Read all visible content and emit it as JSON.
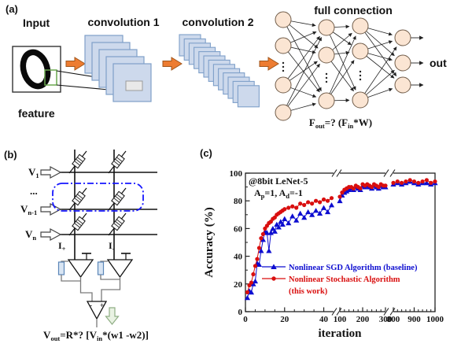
{
  "colors": {
    "conv_fill": "#cdd9ec",
    "conv_stroke": "#7e9fc9",
    "patch_fill": "#e9e9e9",
    "patch_stroke": "#9b9b9b",
    "arrow_orange": "#ed7c31",
    "arrow_orange_stroke": "#a0561c",
    "node_fill": "#fbe5d3",
    "node_stroke": "#705c49",
    "feature_green": "#6aa84f",
    "crossbar_select_blue": "#1616ff",
    "resistor_fill": "#d9e5f3",
    "resistor_stroke": "#5b86b8",
    "green_arrow_fill": "#e9f2e3",
    "green_arrow_stroke": "#8fae84",
    "sgd_blue": "#0d0dd0",
    "stochastic_red": "#d90f0f"
  },
  "panel_a": {
    "label": "(a)",
    "input_label": "Input",
    "conv1_label": "convolution 1",
    "conv2_label": "convolution 2",
    "fc_label": "full connection",
    "feature_label": "feature",
    "out_label": "out",
    "formula": {
      "b1": "F",
      "s1": "out",
      "m": "=? (F",
      "s2": "in",
      "e": "*W)"
    }
  },
  "panel_b": {
    "label": "(b)",
    "rows": {
      "v1": {
        "b": "V",
        "s": "1"
      },
      "dots": "...",
      "vn1": {
        "b": "V",
        "s": "n-1"
      },
      "vn": {
        "b": "V",
        "s": "n"
      }
    },
    "i_plus": {
      "b": "I",
      "s": "+"
    },
    "i_minus": {
      "b": "I",
      "s": "-"
    },
    "opamp_minus": "-",
    "opamp_plus": "+",
    "formula": {
      "b1": "V",
      "s1": "out",
      "m": "=R*? [V",
      "s2": "in",
      "e": "*(w1 -w2)]"
    }
  },
  "panel_c": {
    "label": "(c)"
  },
  "chart_data": {
    "type": "line",
    "xlabel": "iteration",
    "ylabel": "Accuracy (%)",
    "ylim": [
      0,
      100
    ],
    "y_major_ticks": [
      0,
      20,
      40,
      60,
      80,
      100
    ],
    "y_minor_step": 10,
    "grid": false,
    "legend_position": "inside lower right",
    "annotation_line1": "@8bit LeNet-5",
    "annotation_line2_parts": {
      "b1": "A",
      "s1": "p",
      "m": "=1, A",
      "s2": "d",
      "e": "=-1"
    },
    "x_segments": [
      {
        "min": 0,
        "max": 45,
        "major_ticks": [
          0,
          20,
          40
        ],
        "minor_step": 5
      },
      {
        "min": 100,
        "max": 300,
        "major_ticks": [
          100,
          200,
          300
        ],
        "minor_step": 20
      },
      {
        "min": 800,
        "max": 1000,
        "major_ticks": [
          800,
          900,
          1000
        ],
        "minor_step": 20
      }
    ],
    "legend": {
      "row1": "Nonlinear SGD Algorithm (baseline)",
      "row2": "Nonlinear Stochastic Algorithm",
      "row3": "(this work)"
    },
    "series": [
      {
        "name": "Nonlinear SGD Algorithm (baseline)",
        "color": "#0d0dd0",
        "marker": "triangle",
        "x": [
          1,
          2,
          3,
          4,
          5,
          6,
          7,
          8,
          9,
          10,
          11,
          12,
          13,
          14,
          15,
          16,
          17,
          18,
          19,
          20,
          22,
          24,
          26,
          28,
          30,
          32,
          34,
          36,
          38,
          40,
          42,
          44,
          100,
          110,
          120,
          130,
          140,
          150,
          160,
          170,
          180,
          190,
          200,
          210,
          220,
          230,
          240,
          250,
          260,
          270,
          280,
          290,
          300,
          800,
          820,
          840,
          860,
          880,
          900,
          920,
          940,
          960,
          980,
          1000
        ],
        "y": [
          10,
          15,
          14,
          20,
          22,
          35,
          34,
          44,
          52,
          58,
          57,
          44,
          57,
          60,
          58,
          63,
          61,
          65,
          63,
          67,
          64,
          69,
          66,
          71,
          68,
          72,
          70,
          73,
          71,
          75,
          72,
          77,
          80,
          84,
          86,
          87,
          88,
          89,
          88,
          90,
          89,
          88,
          91,
          90,
          91,
          90,
          89,
          91,
          90,
          89,
          91,
          90,
          90,
          92,
          93,
          92,
          93,
          94,
          93,
          92,
          93,
          93,
          92,
          93
        ]
      },
      {
        "name": "Nonlinear Stochastic Algorithm (this work)",
        "color": "#d90f0f",
        "marker": "circle",
        "x": [
          1,
          2,
          3,
          4,
          5,
          6,
          7,
          8,
          9,
          10,
          11,
          12,
          13,
          14,
          15,
          16,
          17,
          18,
          19,
          20,
          22,
          24,
          26,
          28,
          30,
          32,
          34,
          36,
          38,
          40,
          42,
          44,
          100,
          110,
          120,
          130,
          140,
          150,
          160,
          170,
          180,
          190,
          200,
          210,
          220,
          230,
          240,
          250,
          260,
          270,
          280,
          290,
          300,
          800,
          820,
          840,
          860,
          880,
          900,
          920,
          940,
          960,
          980,
          1000
        ],
        "y": [
          14,
          19,
          21,
          27,
          33,
          38,
          46,
          53,
          56,
          60,
          62,
          64,
          65,
          67,
          68,
          70,
          71,
          72,
          73,
          74,
          75,
          76,
          75,
          78,
          77,
          79,
          78,
          80,
          79,
          81,
          80,
          82,
          83,
          86,
          88,
          89,
          90,
          90,
          89,
          91,
          90,
          89,
          92,
          91,
          92,
          91,
          90,
          92,
          91,
          90,
          92,
          91,
          91,
          93,
          94,
          93,
          94,
          95,
          94,
          93,
          94,
          95,
          93,
          94
        ]
      }
    ]
  }
}
